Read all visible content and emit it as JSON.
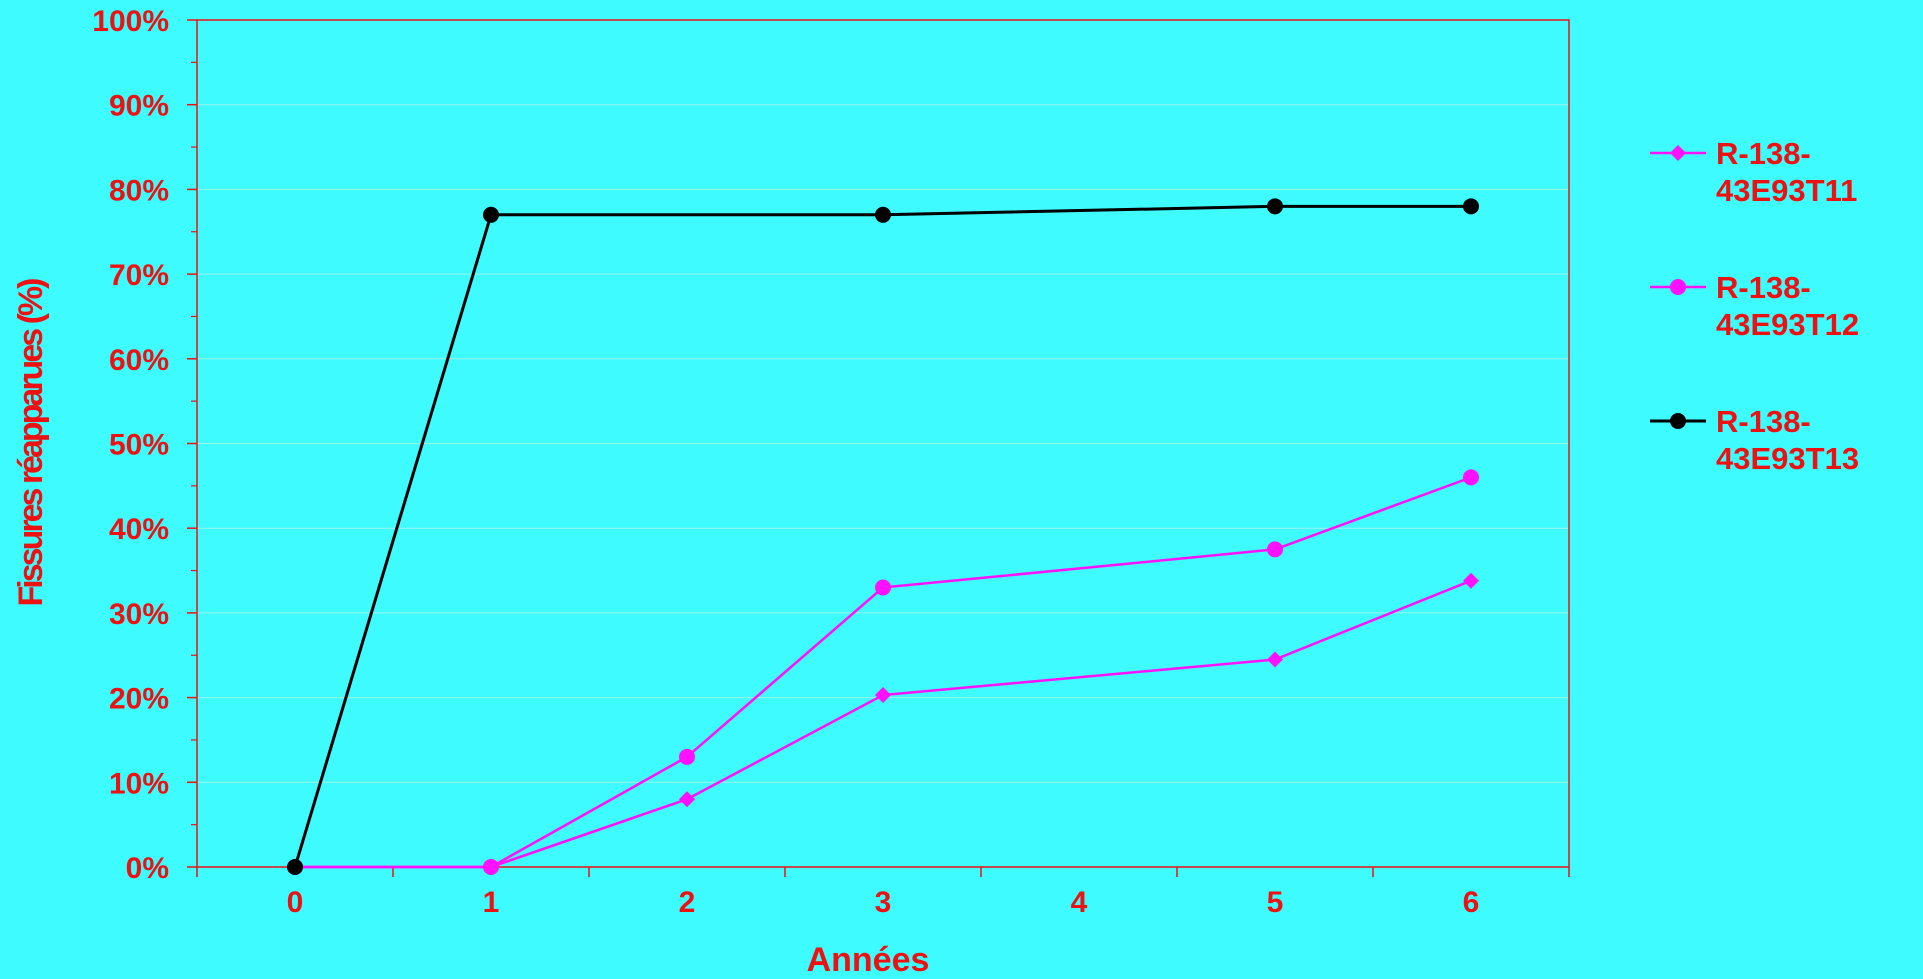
{
  "chart_data": {
    "type": "line",
    "title": "",
    "xlabel": "Années",
    "ylabel": "Fissures réapparues (%)",
    "xlim": [
      -0.5,
      6.5
    ],
    "ylim": [
      0,
      1
    ],
    "x_ticks": [
      "0",
      "1",
      "2",
      "3",
      "4",
      "5",
      "6"
    ],
    "y_ticks": [
      "0%",
      "10%",
      "20%",
      "30%",
      "40%",
      "50%",
      "60%",
      "70%",
      "80%",
      "90%",
      "100%"
    ],
    "grid": true,
    "legend_position": "right",
    "series": [
      {
        "name": "R-138-43E93T11",
        "legend_lines": [
          "R-138-",
          "43E93T11"
        ],
        "color": "#ff10ff",
        "marker": "diamond",
        "points": [
          {
            "x": 0,
            "y": 0.0
          },
          {
            "x": 1,
            "y": 0.0
          },
          {
            "x": 2,
            "y": 0.08
          },
          {
            "x": 3,
            "y": 0.203
          },
          {
            "x": 5,
            "y": 0.245
          },
          {
            "x": 6,
            "y": 0.338
          }
        ]
      },
      {
        "name": "R-138-43E93T12",
        "legend_lines": [
          "R-138-",
          "43E93T12"
        ],
        "color": "#ff10ff",
        "marker": "circle",
        "points": [
          {
            "x": 0,
            "y": 0.0
          },
          {
            "x": 1,
            "y": 0.0
          },
          {
            "x": 2,
            "y": 0.13
          },
          {
            "x": 3,
            "y": 0.33
          },
          {
            "x": 5,
            "y": 0.375
          },
          {
            "x": 6,
            "y": 0.46
          }
        ]
      },
      {
        "name": "R-138-43E93T13",
        "legend_lines": [
          "R-138-",
          "43E93T13"
        ],
        "color": "#000000",
        "marker": "circle",
        "points": [
          {
            "x": 0,
            "y": 0.0
          },
          {
            "x": 1,
            "y": 0.77
          },
          {
            "x": 3,
            "y": 0.77
          },
          {
            "x": 5,
            "y": 0.78
          },
          {
            "x": 6,
            "y": 0.78
          }
        ]
      }
    ]
  },
  "colors": {
    "background": "#3dfbfe",
    "axis": "#ee1111",
    "text": "#ee1111",
    "grid": "#9ef3ee"
  }
}
